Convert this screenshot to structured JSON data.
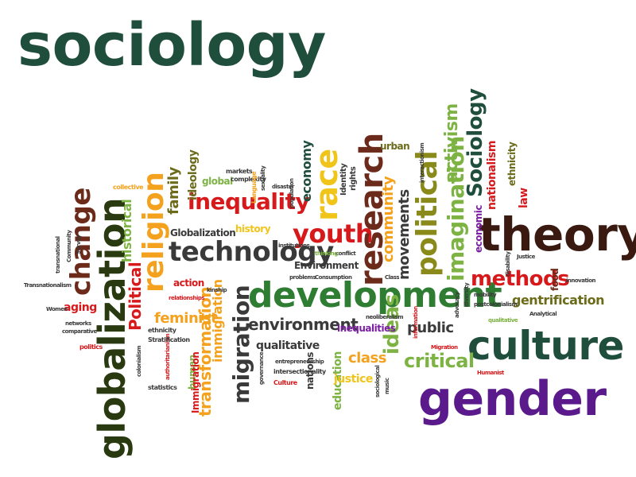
{
  "cloud": {
    "words": [
      {
        "id": "sociology-title",
        "text": "sociology",
        "color": "#1f4e3d"
      },
      {
        "id": "globalization-main",
        "text": "globalization",
        "color": "#2a3a10"
      },
      {
        "id": "change",
        "text": "change",
        "color": "#6b2a1a"
      },
      {
        "id": "religion",
        "text": "religion",
        "color": "#f4a21e"
      },
      {
        "id": "technology",
        "text": "technology",
        "color": "#3a3a3a"
      },
      {
        "id": "inequality",
        "text": "inequality",
        "color": "#d7191c"
      },
      {
        "id": "youth",
        "text": "youth",
        "color": "#d7191c"
      },
      {
        "id": "race",
        "text": "race",
        "color": "#f0c419"
      },
      {
        "id": "research",
        "text": "research",
        "color": "#6b2a1a"
      },
      {
        "id": "theory",
        "text": "theory",
        "color": "#3a1a10"
      },
      {
        "id": "development",
        "text": "development",
        "color": "#2e7d32"
      },
      {
        "id": "culture",
        "text": "culture",
        "color": "#1f4e3d"
      },
      {
        "id": "gender",
        "text": "gender",
        "color": "#5b1a8c"
      },
      {
        "id": "political-big",
        "text": "political",
        "color": "#8a8a1a"
      },
      {
        "id": "sociology-vertical",
        "text": "Sociology",
        "color": "#1f4e3d"
      },
      {
        "id": "imagination",
        "text": "imagination",
        "color": "#7cb342"
      },
      {
        "id": "activism",
        "text": "activism",
        "color": "#7cb342"
      },
      {
        "id": "methods",
        "text": "methods",
        "color": "#d7191c"
      },
      {
        "id": "migration",
        "text": "migration",
        "color": "#3a3a3a"
      },
      {
        "id": "environment",
        "text": "environment",
        "color": "#3a3a3a"
      },
      {
        "id": "ideas",
        "text": "ideas",
        "color": "#7cb342"
      },
      {
        "id": "critical",
        "text": "critical",
        "color": "#7cb342"
      },
      {
        "id": "class",
        "text": "class",
        "color": "#f4a21e"
      },
      {
        "id": "public",
        "text": "public",
        "color": "#3a3a3a"
      },
      {
        "id": "transformation",
        "text": "transformation",
        "color": "#f4a21e"
      },
      {
        "id": "immigration",
        "text": "immigration",
        "color": "#f4a21e"
      },
      {
        "id": "feminist",
        "text": "feminist",
        "color": "#f4a21e"
      },
      {
        "id": "political-red",
        "text": "Political",
        "color": "#d7191c"
      },
      {
        "id": "historical",
        "text": "historical",
        "color": "#7cb342"
      },
      {
        "id": "family",
        "text": "family",
        "color": "#6b6b1a"
      },
      {
        "id": "ideology",
        "text": "ideology",
        "color": "#6b6b1a"
      },
      {
        "id": "economy",
        "text": "economy",
        "color": "#1f4e3d"
      },
      {
        "id": "community",
        "text": "community",
        "color": "#f4a21e"
      },
      {
        "id": "movements",
        "text": "movements",
        "color": "#3a3a3a"
      },
      {
        "id": "nationalism",
        "text": "nationalism",
        "color": "#d7191c"
      },
      {
        "id": "ethnicity",
        "text": "ethnicity",
        "color": "#6b6b1a"
      },
      {
        "id": "economic",
        "text": "economic",
        "color": "#7b1fa2"
      },
      {
        "id": "law",
        "text": "law",
        "color": "#d7191c"
      },
      {
        "id": "food",
        "text": "food",
        "color": "#6b2a1a"
      },
      {
        "id": "gentrification",
        "text": "gentrification",
        "color": "#6b6b1a"
      },
      {
        "id": "globalization-small",
        "text": "Globalization",
        "color": "#3a3a3a"
      },
      {
        "id": "history",
        "text": "history",
        "color": "#f0c419"
      },
      {
        "id": "action",
        "text": "action",
        "color": "#d7191c"
      },
      {
        "id": "aging",
        "text": "aging",
        "color": "#d7191c"
      },
      {
        "id": "environment-cap",
        "text": "Environment",
        "color": "#3a3a3a"
      },
      {
        "id": "qualitative",
        "text": "qualitative",
        "color": "#3a3a3a"
      },
      {
        "id": "inequalities",
        "text": "inequalities",
        "color": "#7b1fa2"
      },
      {
        "id": "education",
        "text": "education",
        "color": "#7cb342"
      },
      {
        "id": "justice",
        "text": "justice",
        "color": "#f0c419"
      },
      {
        "id": "nations",
        "text": "nations",
        "color": "#3a3a3a"
      },
      {
        "id": "human",
        "text": "human",
        "color": "#7cb342"
      },
      {
        "id": "immigration-cap",
        "text": "Immigration",
        "color": "#d7191c"
      },
      {
        "id": "urban",
        "text": "urban",
        "color": "#6b6b1a"
      },
      {
        "id": "identity",
        "text": "Identity",
        "color": "#3a3a3a"
      },
      {
        "id": "rights",
        "text": "rights",
        "color": "#3a3a3a"
      },
      {
        "id": "global",
        "text": "global",
        "color": "#7cb342"
      },
      {
        "id": "markets",
        "text": "markets",
        "color": "#3a3a3a"
      },
      {
        "id": "complexity",
        "text": "complexity",
        "color": "#3a3a3a"
      },
      {
        "id": "language",
        "text": "Language",
        "color": "#f4a21e"
      },
      {
        "id": "disaster",
        "text": "disaster",
        "color": "#3a3a3a"
      },
      {
        "id": "sexuality",
        "text": "sexuality",
        "color": "#3a3a3a"
      },
      {
        "id": "innovation",
        "text": "innovation",
        "color": "#3a3a3a"
      },
      {
        "id": "postcolonialism",
        "text": "postcolonialism",
        "color": "#3a3a3a"
      },
      {
        "id": "analytical",
        "text": "Analytical",
        "color": "#3a3a3a"
      },
      {
        "id": "neoliberalism",
        "text": "neoliberalism",
        "color": "#3a3a3a"
      },
      {
        "id": "migration-small",
        "text": "Migration",
        "color": "#d7191c"
      },
      {
        "id": "humanist",
        "text": "Humanist",
        "color": "#d7191c"
      },
      {
        "id": "intersectionality",
        "text": "intersectionality",
        "color": "#3a3a3a"
      },
      {
        "id": "culture-small",
        "text": "Culture",
        "color": "#d7191c"
      },
      {
        "id": "entrepreneurship",
        "text": "entrepreneurship",
        "color": "#3a3a3a"
      },
      {
        "id": "governance",
        "text": "governance",
        "color": "#3a3a3a"
      },
      {
        "id": "sociological",
        "text": "sociological",
        "color": "#3a3a3a"
      },
      {
        "id": "music",
        "text": "music",
        "color": "#3a3a3a"
      },
      {
        "id": "statistics",
        "text": "statistics",
        "color": "#3a3a3a"
      },
      {
        "id": "authoritarianism",
        "text": "authoritarianism",
        "color": "#d7191c"
      },
      {
        "id": "colonialism",
        "text": "colonialism",
        "color": "#3a3a3a"
      },
      {
        "id": "ethnicity-small",
        "text": "ethnicity",
        "color": "#3a3a3a"
      },
      {
        "id": "stratification",
        "text": "Stratification",
        "color": "#3a3a3a"
      },
      {
        "id": "politics",
        "text": "politics",
        "color": "#d7191c"
      },
      {
        "id": "comparative",
        "text": "comparative",
        "color": "#3a3a3a"
      },
      {
        "id": "networks",
        "text": "networks",
        "color": "#3a3a3a"
      },
      {
        "id": "women",
        "text": "Women",
        "color": "#3a3a3a"
      },
      {
        "id": "transnationalism",
        "text": "Transnationalism",
        "color": "#3a3a3a"
      },
      {
        "id": "transnational",
        "text": "transnational",
        "color": "#3a3a3a"
      },
      {
        "id": "community-small",
        "text": "Community",
        "color": "#3a3a3a"
      },
      {
        "id": "survey",
        "text": "Survey",
        "color": "#3a3a3a"
      },
      {
        "id": "collective",
        "text": "collective",
        "color": "#f4a21e"
      },
      {
        "id": "relationships",
        "text": "relationships",
        "color": "#d7191c"
      },
      {
        "id": "kinship",
        "text": "kinship",
        "color": "#3a3a3a"
      },
      {
        "id": "problems",
        "text": "problems",
        "color": "#3a3a3a"
      },
      {
        "id": "consumption",
        "text": "Consumption",
        "color": "#3a3a3a"
      },
      {
        "id": "conflict",
        "text": "conflict",
        "color": "#3a3a3a"
      },
      {
        "id": "thinking",
        "text": "thinking",
        "color": "#7cb342"
      },
      {
        "id": "institutions",
        "text": "institutions",
        "color": "#3a3a3a"
      },
      {
        "id": "class-small",
        "text": "Class",
        "color": "#3a3a3a"
      },
      {
        "id": "justice-cap",
        "text": "Justice",
        "color": "#3a3a3a"
      },
      {
        "id": "mobility",
        "text": "mobility",
        "color": "#3a3a3a"
      },
      {
        "id": "qualitative-small",
        "text": "qualitative",
        "color": "#7cb342"
      },
      {
        "id": "advocacy",
        "text": "advocacy",
        "color": "#3a3a3a"
      },
      {
        "id": "information",
        "text": "information",
        "color": "#d7191c"
      },
      {
        "id": "disability",
        "text": "disability",
        "color": "#3a3a3a"
      },
      {
        "id": "diversity",
        "text": "diversity",
        "color": "#3a3a3a"
      },
      {
        "id": "interactionism",
        "text": "interactionism",
        "color": "#3a3a3a"
      },
      {
        "id": "population",
        "text": "population",
        "color": "#3a3a3a"
      }
    ]
  }
}
